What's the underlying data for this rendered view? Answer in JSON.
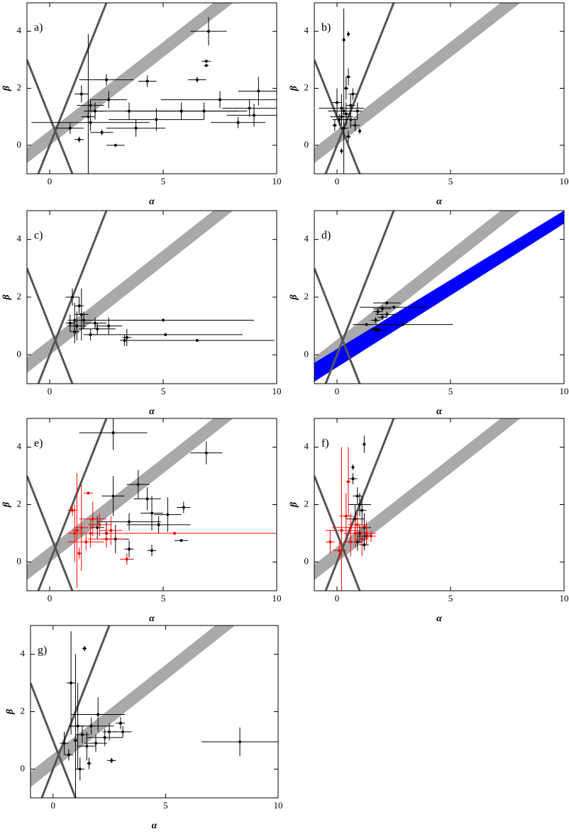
{
  "chart_data": [
    {
      "type": "scatter",
      "annotation": "a)",
      "xlabel": "α",
      "ylabel": "β",
      "xlim": [
        -1,
        10
      ],
      "ylim": [
        -1,
        5
      ],
      "xticks": [
        0,
        5,
        10
      ],
      "yticks": [
        0,
        2,
        4
      ],
      "bands": [
        {
          "x": [
            -1,
            10
          ],
          "low": [
            -0.63,
            6.19
          ],
          "high": [
            -0.09,
            6.73
          ],
          "color": "#a9a9a9"
        }
      ],
      "reference_lines": [
        {
          "x": [
            -0.5,
            2.5
          ],
          "y": [
            -1,
            5
          ]
        },
        {
          "x": [
            -1,
            1
          ],
          "y": [
            3,
            -1
          ]
        }
      ],
      "reference_color": "#555555",
      "series": [
        {
          "color": "#000000",
          "x": [
            7.0,
            6.9,
            6.9,
            6.5,
            2.5,
            4.3,
            9.2,
            7.5,
            8.8,
            6.8,
            2.6,
            1.8,
            1.8,
            1.7,
            3.5,
            4.7,
            5.8,
            9.0,
            2.9,
            1.3,
            0.9,
            2.3,
            8.3,
            3.8,
            1.4,
            2.0
          ],
          "values": [
            4.0,
            2.95,
            2.8,
            2.3,
            2.3,
            2.25,
            1.9,
            1.6,
            1.3,
            1.2,
            1.6,
            1.4,
            0.8,
            1.0,
            1.2,
            0.9,
            1.2,
            1.05,
            0.0,
            0.2,
            0.6,
            0.45,
            0.8,
            0.6,
            1.8,
            1.2
          ],
          "x_err": [
            0.8,
            0.2,
            0.1,
            0.4,
            1.2,
            0.4,
            0.9,
            2.6,
            1.2,
            1.9,
            0.8,
            0.6,
            2.6,
            0.3,
            2.0,
            2.1,
            2.5,
            1.2,
            0.4,
            0.2,
            0.6,
            0.5,
            1.2,
            1.3,
            0.3,
            0.4
          ],
          "y_err": [
            0.5,
            0.05,
            0.05,
            0.1,
            0.2,
            0.2,
            0.5,
            0.3,
            0.3,
            0.3,
            0.3,
            0.2,
            0.3,
            2.9,
            0.3,
            0.4,
            0.3,
            0.4,
            0.05,
            0.1,
            0.2,
            0.1,
            0.2,
            0.3,
            0.3,
            0.3
          ]
        }
      ]
    },
    {
      "type": "scatter",
      "annotation": "b)",
      "xlabel": "α",
      "ylabel": "β",
      "xlim": [
        -1,
        10
      ],
      "ylim": [
        -1,
        5
      ],
      "xticks": [
        0,
        5,
        10
      ],
      "yticks": [
        0,
        2,
        4
      ],
      "bands": [
        {
          "x": [
            -1,
            10
          ],
          "low": [
            -0.63,
            6.19
          ],
          "high": [
            -0.09,
            6.73
          ],
          "color": "#a9a9a9"
        }
      ],
      "reference_lines": [
        {
          "x": [
            -0.5,
            2.5
          ],
          "y": [
            -1,
            5
          ]
        },
        {
          "x": [
            -1,
            1
          ],
          "y": [
            3,
            -1
          ]
        }
      ],
      "reference_color": "#555555",
      "series": [
        {
          "color": "#000000",
          "x": [
            0.2,
            0.3,
            0.2,
            0.4,
            0.1,
            0.6,
            0.7,
            0.3,
            0.5,
            0.2,
            0.8,
            1.0,
            -0.1,
            0.5,
            0.0,
            0.4,
            0.6,
            0.3,
            0.9,
            0.5
          ],
          "values": [
            1.3,
            1.2,
            1.0,
            1.1,
            0.9,
            1.4,
            1.8,
            3.7,
            3.9,
            -0.2,
            0.7,
            0.5,
            0.7,
            0.3,
            1.5,
            2.0,
            0.9,
            0.6,
            1.2,
            2.4
          ],
          "x_err": [
            1.0,
            0.7,
            0.5,
            0.2,
            0.3,
            0.2,
            0.2,
            0.05,
            0.05,
            0.05,
            0.2,
            0.05,
            0.1,
            0.1,
            0.2,
            0.1,
            0.3,
            0.2,
            0.2,
            0.1
          ],
          "y_err": [
            0.5,
            3.6,
            0.3,
            0.4,
            0.2,
            0.4,
            0.2,
            0.1,
            0.1,
            0.1,
            0.2,
            0.1,
            0.2,
            0.2,
            0.5,
            0.4,
            0.3,
            0.3,
            0.3,
            0.3
          ]
        }
      ]
    },
    {
      "type": "scatter",
      "annotation": "c)",
      "xlabel": "α",
      "ylabel": "β",
      "xlim": [
        -1,
        10
      ],
      "ylim": [
        -1,
        5
      ],
      "xticks": [
        0,
        5,
        10
      ],
      "yticks": [
        0,
        2,
        4
      ],
      "bands": [
        {
          "x": [
            -1,
            10
          ],
          "low": [
            -0.63,
            6.19
          ],
          "high": [
            -0.09,
            6.73
          ],
          "color": "#a9a9a9"
        }
      ],
      "reference_lines": [
        {
          "x": [
            -0.5,
            2.5
          ],
          "y": [
            -1,
            5
          ]
        },
        {
          "x": [
            -1,
            1
          ],
          "y": [
            3,
            -1
          ]
        }
      ],
      "reference_color": "#555555",
      "series": [
        {
          "color": "#000000",
          "x": [
            1.1,
            1.2,
            1.4,
            1.0,
            1.3,
            1.5,
            2.0,
            2.6,
            3.3,
            3.4,
            1.8,
            1.1,
            0.9,
            2.1,
            5.0,
            5.1,
            6.5
          ],
          "values": [
            1.2,
            1.0,
            1.4,
            2.0,
            1.7,
            1.2,
            1.1,
            1.0,
            0.5,
            0.6,
            0.7,
            0.8,
            1.1,
            0.9,
            1.2,
            0.7,
            0.5
          ],
          "x_err": [
            0.3,
            0.4,
            0.3,
            0.3,
            0.2,
            0.7,
            0.5,
            0.6,
            0.2,
            0.2,
            0.3,
            0.2,
            0.2,
            0.8,
            4.0,
            3.4,
            3.4
          ],
          "y_err": [
            0.6,
            0.5,
            0.9,
            0.3,
            0.3,
            0.3,
            0.2,
            0.3,
            0.2,
            0.3,
            0.2,
            0.4,
            0.3,
            0.2,
            0.05,
            0.05,
            0.05
          ]
        }
      ]
    },
    {
      "type": "scatter",
      "annotation": "d)",
      "xlabel": "α",
      "ylabel": "β",
      "xlim": [
        -1,
        10
      ],
      "ylim": [
        -1,
        5
      ],
      "xticks": [
        0,
        5,
        10
      ],
      "yticks": [
        0,
        2,
        4
      ],
      "bands": [
        {
          "x": [
            -1,
            10
          ],
          "low": [
            -0.63,
            6.19
          ],
          "high": [
            -0.09,
            6.73
          ],
          "color": "#a9a9a9"
        },
        {
          "x": [
            -1,
            10
          ],
          "low": [
            -0.93,
            4.55
          ],
          "high": [
            -0.28,
            5.0
          ],
          "color": "#0000ff"
        }
      ],
      "reference_lines": [
        {
          "x": [
            -0.5,
            2.5
          ],
          "y": [
            -1,
            5
          ]
        },
        {
          "x": [
            -1,
            1
          ],
          "y": [
            3,
            -1
          ]
        }
      ],
      "reference_color": "#555555",
      "series": [
        {
          "color": "#000000",
          "x": [
            2.2,
            2.5,
            2.0,
            1.8,
            2.2,
            2.0,
            1.7,
            1.3,
            2.9,
            1.7,
            1.8
          ],
          "values": [
            1.8,
            1.65,
            1.6,
            1.5,
            1.4,
            1.3,
            1.2,
            1.05,
            1.05,
            0.9,
            0.85
          ],
          "x_err": [
            0.6,
            1.5,
            0.4,
            0.2,
            0.5,
            0.2,
            0.2,
            0.2,
            2.2,
            0.2,
            0.4
          ],
          "y_err": [
            0.05,
            0.05,
            0.1,
            0.1,
            0.1,
            0.1,
            0.1,
            0.05,
            0.05,
            0.1,
            0.1
          ]
        }
      ]
    },
    {
      "type": "scatter",
      "annotation": "e)",
      "xlabel": "α",
      "ylabel": "β",
      "xlim": [
        -1,
        10
      ],
      "ylim": [
        -1,
        5
      ],
      "xticks": [
        0,
        5,
        10
      ],
      "yticks": [
        0,
        2,
        4
      ],
      "bands": [
        {
          "x": [
            -1,
            10
          ],
          "low": [
            -0.63,
            6.19
          ],
          "high": [
            -0.09,
            6.73
          ],
          "color": "#a9a9a9"
        }
      ],
      "reference_lines": [
        {
          "x": [
            -0.5,
            2.5
          ],
          "y": [
            -1,
            5
          ]
        },
        {
          "x": [
            -1,
            1
          ],
          "y": [
            3,
            -1
          ]
        }
      ],
      "reference_color": "#555555",
      "series": [
        {
          "color": "#000000",
          "x": [
            2.8,
            6.9,
            3.9,
            2.8,
            4.3,
            5.9,
            4.5,
            5.2,
            3.5,
            4.8,
            5.8,
            4.5,
            3.5,
            2.5,
            2.1,
            2.9
          ],
          "values": [
            4.5,
            3.8,
            2.7,
            2.3,
            2.2,
            1.9,
            1.7,
            1.65,
            1.4,
            1.3,
            0.75,
            0.4,
            0.45,
            1.0,
            1.2,
            0.8
          ],
          "x_err": [
            1.5,
            0.7,
            0.5,
            0.5,
            0.6,
            0.3,
            0.5,
            0.6,
            1.4,
            1.4,
            0.3,
            0.2,
            0.2,
            0.5,
            0.3,
            0.6
          ],
          "y_err": [
            0.6,
            0.4,
            0.5,
            0.7,
            0.4,
            0.2,
            0.6,
            0.6,
            0.3,
            0.3,
            0.05,
            0.2,
            0.3,
            0.4,
            0.4,
            0.5
          ]
        },
        {
          "color": "#ff0000",
          "x": [
            5.5,
            1.7,
            1.0,
            1.2,
            1.4,
            1.8,
            2.2,
            2.5,
            1.6,
            3.4,
            1.9,
            2.7,
            1.3,
            1.1
          ],
          "values": [
            1.0,
            2.4,
            1.8,
            1.1,
            1.2,
            1.0,
            1.3,
            0.8,
            0.7,
            0.1,
            1.5,
            1.1,
            0.3,
            1.0
          ],
          "x_err": [
            4.5,
            0.2,
            0.2,
            0.2,
            0.3,
            0.6,
            0.5,
            0.8,
            0.8,
            0.3,
            0.6,
            0.5,
            0.1,
            0.3
          ],
          "y_err": [
            0.05,
            0.05,
            0.2,
            2.0,
            1.5,
            0.5,
            0.4,
            0.3,
            0.3,
            0.2,
            0.6,
            0.5,
            0.2,
            1.0
          ]
        }
      ]
    },
    {
      "type": "scatter",
      "annotation": "f)",
      "xlabel": "α",
      "ylabel": "β",
      "xlim": [
        -1,
        10
      ],
      "ylim": [
        -1,
        5
      ],
      "xticks": [
        0,
        5,
        10
      ],
      "yticks": [
        0,
        2,
        4
      ],
      "bands": [
        {
          "x": [
            -1,
            10
          ],
          "low": [
            -0.63,
            6.19
          ],
          "high": [
            -0.09,
            6.73
          ],
          "color": "#a9a9a9"
        }
      ],
      "reference_lines": [
        {
          "x": [
            -0.5,
            2.5
          ],
          "y": [
            -1,
            5
          ]
        },
        {
          "x": [
            -1,
            1
          ],
          "y": [
            3,
            -1
          ]
        }
      ],
      "reference_color": "#555555",
      "series": [
        {
          "color": "#000000",
          "x": [
            1.2,
            0.7,
            0.7,
            0.9,
            1.0,
            1.1,
            0.8,
            1.2,
            1.0,
            1.3,
            0.9,
            1.2
          ],
          "values": [
            4.1,
            3.3,
            2.9,
            2.3,
            2.0,
            1.8,
            1.5,
            1.2,
            1.0,
            0.9,
            0.7,
            0.6
          ],
          "x_err": [
            0.05,
            0.05,
            0.2,
            0.2,
            0.5,
            0.2,
            0.4,
            0.3,
            0.5,
            0.4,
            0.2,
            0.2
          ],
          "y_err": [
            0.3,
            0.1,
            0.2,
            0.3,
            0.4,
            0.5,
            0.5,
            0.5,
            0.3,
            0.3,
            0.3,
            0.2
          ]
        },
        {
          "color": "#ff0000",
          "x": [
            0.2,
            0.5,
            0.4,
            0.6,
            0.8,
            0.9,
            -0.3,
            0.1,
            1.1,
            1.3,
            1.5,
            0.6
          ],
          "values": [
            1.1,
            2.8,
            1.6,
            1.2,
            1.0,
            1.3,
            0.7,
            0.4,
            0.8,
            1.0,
            0.9,
            0.7
          ],
          "x_err": [
            0.7,
            0.1,
            0.3,
            0.8,
            0.5,
            0.4,
            0.2,
            0.3,
            0.3,
            0.4,
            0.2,
            0.3
          ],
          "y_err": [
            2.9,
            1.2,
            0.8,
            0.5,
            0.5,
            0.4,
            0.4,
            0.3,
            0.6,
            0.4,
            0.2,
            0.5
          ]
        }
      ]
    },
    {
      "type": "scatter",
      "annotation": "g)",
      "xlabel": "α",
      "ylabel": "β",
      "xlim": [
        -1,
        10
      ],
      "ylim": [
        -1,
        5
      ],
      "xticks": [
        0,
        5,
        10
      ],
      "yticks": [
        0,
        2,
        4
      ],
      "bands": [
        {
          "x": [
            -1,
            10
          ],
          "low": [
            -0.63,
            6.19
          ],
          "high": [
            -0.09,
            6.73
          ],
          "color": "#a9a9a9"
        }
      ],
      "reference_lines": [
        {
          "x": [
            -0.5,
            2.5
          ],
          "y": [
            -1,
            5
          ]
        },
        {
          "x": [
            -1,
            1
          ],
          "y": [
            3,
            -1
          ]
        }
      ],
      "reference_color": "#555555",
      "series": [
        {
          "color": "#000000",
          "x": [
            8.3,
            1.4,
            0.8,
            1.0,
            1.1,
            2.0,
            1.7,
            2.3,
            3.0,
            3.1,
            2.5,
            2.6,
            1.5,
            1.3,
            0.5,
            0.7,
            1.9,
            1.6,
            1.2
          ],
          "values": [
            0.95,
            4.2,
            3.0,
            1.0,
            1.5,
            1.9,
            1.5,
            1.1,
            1.6,
            1.3,
            1.3,
            0.3,
            0.8,
            1.2,
            0.9,
            0.5,
            0.9,
            0.2,
            0.0
          ],
          "x_err": [
            1.7,
            0.1,
            0.2,
            0.1,
            0.3,
            1.2,
            1.0,
            0.8,
            0.2,
            0.4,
            0.3,
            0.2,
            0.4,
            0.3,
            0.2,
            0.2,
            0.5,
            0.1,
            0.2
          ],
          "y_err": [
            0.5,
            0.1,
            1.8,
            3.0,
            1.5,
            0.6,
            0.3,
            0.3,
            0.2,
            0.2,
            0.3,
            0.1,
            0.5,
            0.3,
            0.4,
            0.2,
            0.3,
            0.2,
            0.4
          ]
        }
      ]
    }
  ]
}
